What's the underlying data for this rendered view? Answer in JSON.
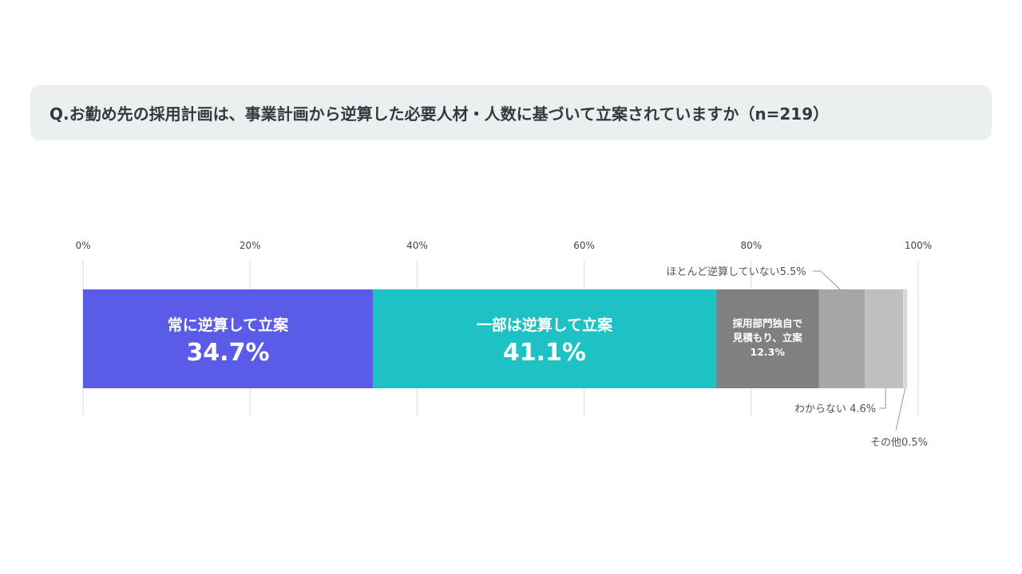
{
  "question": "Q.お勤め先の採用計画は、事業計画から逆算した必要人材・人数に基づいて立案されていますか（n=219）",
  "chart_data": {
    "type": "bar",
    "orientation": "horizontal",
    "stacked": true,
    "xlim": [
      0,
      100
    ],
    "ticks": [
      "0%",
      "20%",
      "40%",
      "60%",
      "80%",
      "100%"
    ],
    "grid": true,
    "legend": "none",
    "segments": [
      {
        "name": "常に逆算して立案",
        "value": 34.7,
        "label_lines": [
          "常に逆算して立案",
          "34.7%"
        ],
        "color": "#5a5ce8",
        "label_position": "inside"
      },
      {
        "name": "一部は逆算して立案",
        "value": 41.1,
        "label_lines": [
          "一部は逆算して立案",
          "41.1%"
        ],
        "color": "#1ec2c4",
        "label_position": "inside"
      },
      {
        "name": "採用部門独自で見積もり、立案",
        "value": 12.3,
        "label_lines": [
          "採用部門独自で",
          "見積もり、立案",
          "12.3%"
        ],
        "color": "#808080",
        "label_position": "inside"
      },
      {
        "name": "ほとんど逆算していない",
        "value": 5.5,
        "label_lines": [
          "ほとんど逆算していない5.5%"
        ],
        "color": "#a6a6a6",
        "label_position": "above"
      },
      {
        "name": "わからない",
        "value": 4.6,
        "label_lines": [
          "わからない 4.6%"
        ],
        "color": "#bfbfbf",
        "label_position": "below"
      },
      {
        "name": "その他",
        "value": 0.5,
        "label_lines": [
          "その他0.5%"
        ],
        "color": "#d9d9d9",
        "label_position": "below-far"
      }
    ]
  }
}
